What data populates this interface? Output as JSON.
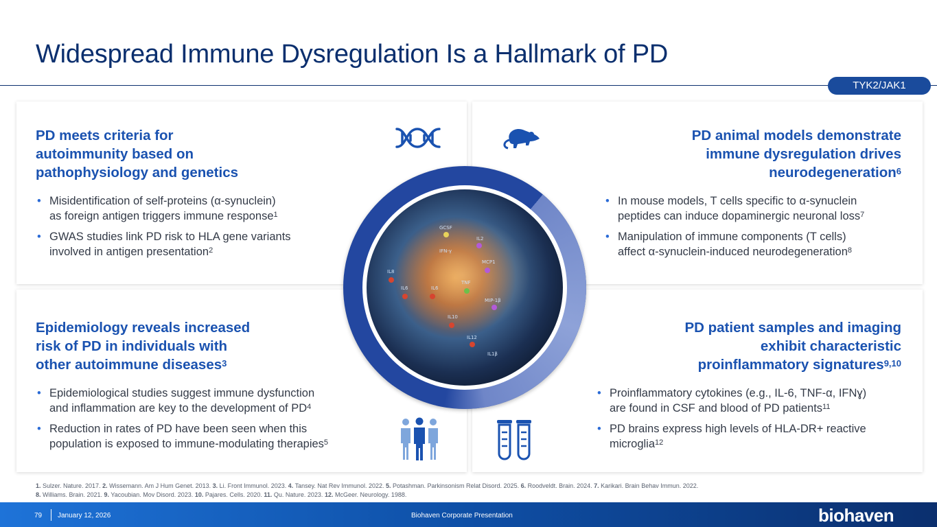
{
  "title": "Widespread Immune Dysregulation Is a Hallmark of PD",
  "tag": "TYK2/JAK1",
  "panels": {
    "top_left": {
      "heading_lines": [
        "PD meets criteria for",
        "autoimmunity based on",
        "pathophysiology and genetics"
      ],
      "bullets": [
        {
          "lines": [
            "Misidentification of self-proteins (α-synuclein)",
            "as foreign antigen triggers immune response"
          ],
          "ref": "1"
        },
        {
          "lines": [
            "GWAS studies link PD risk to HLA gene variants",
            "involved in antigen presentation"
          ],
          "ref": "2"
        }
      ],
      "icon": "dna-icon"
    },
    "top_right": {
      "heading_lines": [
        "PD animal models demonstrate",
        "immune dysregulation drives",
        "neurodegeneration"
      ],
      "heading_ref": "6",
      "bullets": [
        {
          "lines": [
            "In mouse models, T cells specific to α-synuclein",
            "peptides can induce dopaminergic neuronal loss"
          ],
          "ref": "7"
        },
        {
          "lines": [
            "Manipulation of immune components (T cells)",
            "affect α-synuclein-induced neurodegeneration"
          ],
          "ref": "8"
        }
      ],
      "icon": "mouse-icon"
    },
    "bottom_left": {
      "heading_lines": [
        "Epidemiology reveals increased",
        "risk of PD in individuals with",
        "other autoimmune diseases"
      ],
      "heading_ref": "3",
      "bullets": [
        {
          "lines": [
            "Epidemiological studies suggest immune dysfunction",
            "and inflammation are key to the development of PD"
          ],
          "ref": "4"
        },
        {
          "lines": [
            "Reduction in rates of PD have been seen when this",
            "population is exposed to immune-modulating therapies"
          ],
          "ref": "5"
        }
      ],
      "icon": "people-group-icon"
    },
    "bottom_right": {
      "heading_lines": [
        "PD patient samples and imaging",
        "exhibit characteristic",
        "proinflammatory signatures"
      ],
      "heading_ref": "9,10",
      "bullets": [
        {
          "lines": [
            "Proinflammatory cytokines (e.g., IL-6, TNF-α, IFNɣ)",
            "are found in CSF and blood of PD patients"
          ],
          "ref": "11"
        },
        {
          "lines": [
            "PD brains express high levels of HLA-DR+ reactive",
            "microglia"
          ],
          "ref": "12"
        }
      ],
      "icon": "test-tubes-icon"
    }
  },
  "brain_image": {
    "labels": [
      "GCSF",
      "IFN-γ",
      "IL8",
      "IL6",
      "IL6",
      "TNF",
      "MCP1",
      "IL2",
      "MIP-1β",
      "IL10",
      "IL12",
      "IL1β"
    ]
  },
  "references": {
    "line1": [
      {
        "n": "1.",
        "t": " Sulzer. Nature. 2017. "
      },
      {
        "n": "2.",
        "t": " Wissemann. Am J Hum Genet. 2013. "
      },
      {
        "n": "3.",
        "t": " Li. Front Immunol. 2023. "
      },
      {
        "n": "4.",
        "t": " Tansey. Nat Rev Immunol. 2022. "
      },
      {
        "n": "5.",
        "t": " Potashman. Parkinsonism Relat Disord. 2025. "
      },
      {
        "n": "6.",
        "t": " Roodveldt. Brain. 2024. "
      },
      {
        "n": "7.",
        "t": " Karikari. Brain Behav Immun. 2022."
      }
    ],
    "line2": [
      {
        "n": "8.",
        "t": " Williams. Brain. 2021. "
      },
      {
        "n": "9.",
        "t": " Yacoubian. Mov Disord. 2023. "
      },
      {
        "n": "10.",
        "t": " Pajares. Cells. 2020. "
      },
      {
        "n": "11.",
        "t": " Qu. Nature. 2023. "
      },
      {
        "n": "12.",
        "t": " McGeer. Neurology. 1988."
      }
    ]
  },
  "footer": {
    "page_number": "79",
    "date": "January 12, 2026",
    "center_text": "Biohaven Corporate Presentation",
    "logo": "biohaven"
  },
  "colors": {
    "accent": "#1a52b0",
    "title": "#0b2f6e",
    "ring": "#2347a0"
  }
}
